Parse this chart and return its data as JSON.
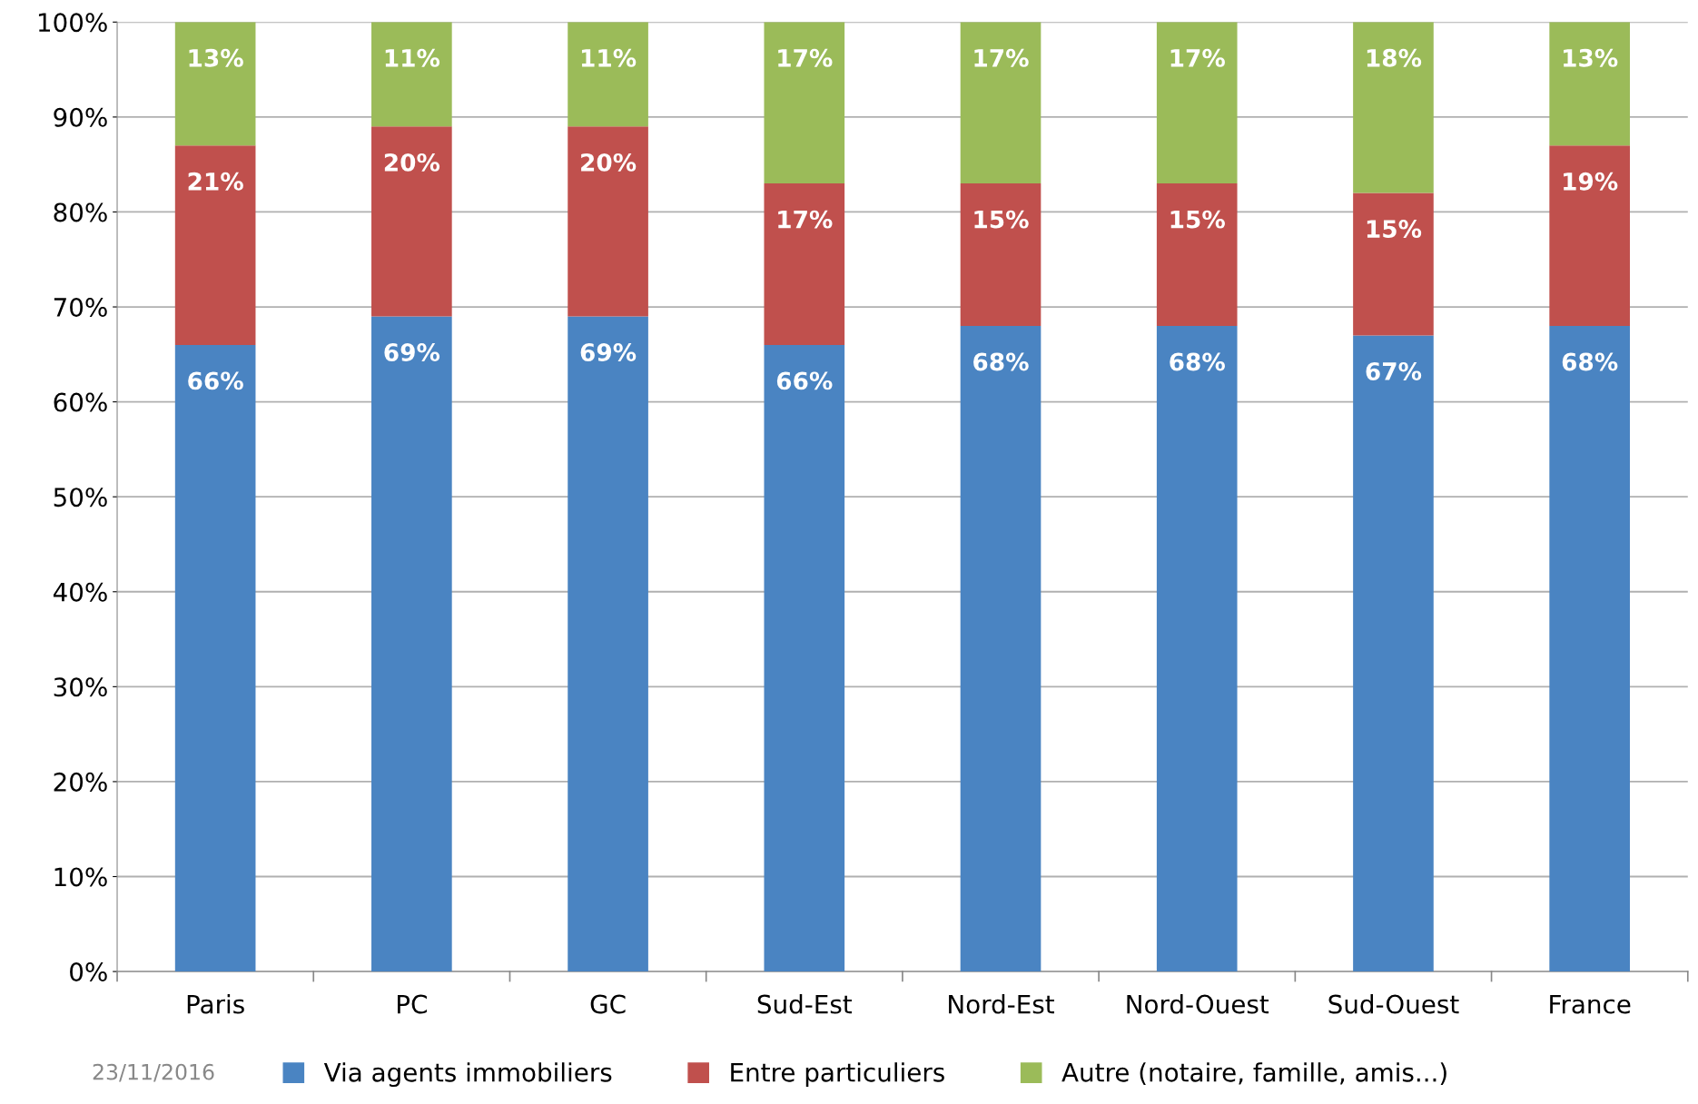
{
  "chart_data": {
    "type": "bar",
    "stacked": true,
    "categories": [
      "Paris",
      "PC",
      "GC",
      "Sud-Est",
      "Nord-Est",
      "Nord-Ouest",
      "Sud-Ouest",
      "France"
    ],
    "series": [
      {
        "name": "Via agents immobiliers",
        "color": "#4a84c2",
        "values": [
          66,
          69,
          69,
          66,
          68,
          68,
          67,
          68
        ],
        "value_labels": [
          "66%",
          "69%",
          "69%",
          "66%",
          "68%",
          "68%",
          "67%",
          "68%"
        ]
      },
      {
        "name": "Entre particuliers",
        "color": "#c0504d",
        "values": [
          21,
          20,
          20,
          17,
          15,
          15,
          15,
          19
        ],
        "value_labels": [
          "21%",
          "20%",
          "20%",
          "17%",
          "15%",
          "15%",
          "15%",
          "19%"
        ]
      },
      {
        "name": "Autre (notaire, famille, amis...)",
        "color": "#9bbb59",
        "values": [
          13,
          11,
          11,
          17,
          17,
          17,
          18,
          13
        ],
        "value_labels": [
          "13%",
          "11%",
          "11%",
          "17%",
          "17%",
          "17%",
          "18%",
          "13%"
        ]
      }
    ],
    "ylim": [
      0,
      100
    ],
    "yticks": [
      {
        "value": 0,
        "label": "0%"
      },
      {
        "value": 10,
        "label": "10%"
      },
      {
        "value": 20,
        "label": "20%"
      },
      {
        "value": 30,
        "label": "30%"
      },
      {
        "value": 40,
        "label": "40%"
      },
      {
        "value": 50,
        "label": "50%"
      },
      {
        "value": 60,
        "label": "60%"
      },
      {
        "value": 70,
        "label": "70%"
      },
      {
        "value": 80,
        "label": "80%"
      },
      {
        "value": 90,
        "label": "90%"
      },
      {
        "value": 100,
        "label": "100%"
      }
    ],
    "grid": "y",
    "legend": "bottom",
    "annotations": [
      "23/11/2016"
    ]
  }
}
